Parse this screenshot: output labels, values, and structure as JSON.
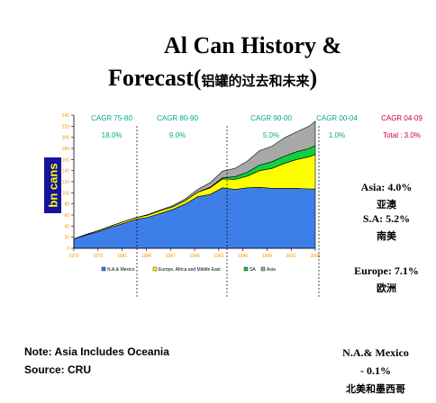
{
  "title": {
    "line1": "Al Can History &",
    "line2": "Forecast(",
    "line2_cjk": "铝罐的过去和未来",
    "line2_end": ")"
  },
  "y_badge": "bn cans",
  "notes": {
    "line1": "Note: Asia Includes Oceania",
    "line2": "Source: CRU"
  },
  "side_labels": {
    "asia": "Asia: 4.0%",
    "asia_cjk": "亚澳",
    "sa": "S.A: 5.2%",
    "sa_cjk": "南美",
    "europe": "Europe: 7.1%",
    "europe_cjk": "欧洲",
    "na": "N.A.& Mexico",
    "na_val": "- 0.1%",
    "na_cjk": "北美和墨西哥"
  },
  "colors": {
    "na": "#3e7ee8",
    "europe": "#ffff00",
    "sa": "#10d040",
    "asia": "#a8a8a8",
    "cagr": "#00a890",
    "cagr_last": "#c80030"
  },
  "chart_data": {
    "type": "area",
    "stacked": true,
    "title": "",
    "xlabel": "",
    "ylabel": "bn cans",
    "x": [
      1970,
      1972,
      1974,
      1976,
      1978,
      1980,
      1982,
      1984,
      1986,
      1988,
      1990,
      1992,
      1994,
      1996,
      1998,
      2000,
      2002,
      2004,
      2006,
      2008,
      2009
    ],
    "xticks": [
      "1970",
      "1975",
      "1981",
      "1984",
      "1987",
      "1990",
      "1993",
      "1996",
      "1999",
      "2002",
      "2005"
    ],
    "ylim": [
      0,
      240
    ],
    "yticks": [
      "0",
      "20",
      "40",
      "60",
      "80",
      "100",
      "120",
      "140",
      "160",
      "180",
      "200",
      "220",
      "240"
    ],
    "series": [
      {
        "name": "N.A.& Mexico",
        "values": [
          17,
          24,
          30,
          38,
          45,
          52,
          56,
          63,
          70,
          80,
          93,
          97,
          109,
          106,
          109,
          110,
          108,
          108,
          108,
          107,
          107
        ]
      },
      {
        "name": "Europe, Africa and Middle East",
        "values": [
          0,
          1,
          2,
          2,
          3,
          3,
          4,
          5,
          5,
          6,
          8,
          12,
          16,
          18,
          21,
          30,
          36,
          45,
          52,
          58,
          62
        ]
      },
      {
        "name": "SA",
        "values": [
          0,
          0,
          0,
          0,
          0,
          0,
          0,
          0,
          0,
          0,
          0,
          1,
          2,
          5,
          7,
          10,
          12,
          13,
          14,
          15,
          16
        ]
      },
      {
        "name": "Asia",
        "values": [
          0,
          0,
          0,
          0,
          0,
          0,
          1,
          1,
          2,
          3,
          5,
          8,
          12,
          15,
          20,
          26,
          28,
          33,
          36,
          40,
          44
        ]
      }
    ],
    "legend": [
      "N.A.& Mexico",
      "Europe, Africa and Middle East",
      "SA",
      "Asia"
    ],
    "legend_position": "bottom",
    "cagr_periods": [
      {
        "label": "CAGR 75-80",
        "value": "18.0%"
      },
      {
        "label": "CAGR 80-90",
        "value": "9.0%"
      },
      {
        "label": "CAGR 90-00",
        "value": "5.0%"
      },
      {
        "label": "CAGR 00-04",
        "value": "1.0%"
      },
      {
        "label": "CAGR 04-09",
        "value": "Total : 3.0%"
      }
    ]
  }
}
